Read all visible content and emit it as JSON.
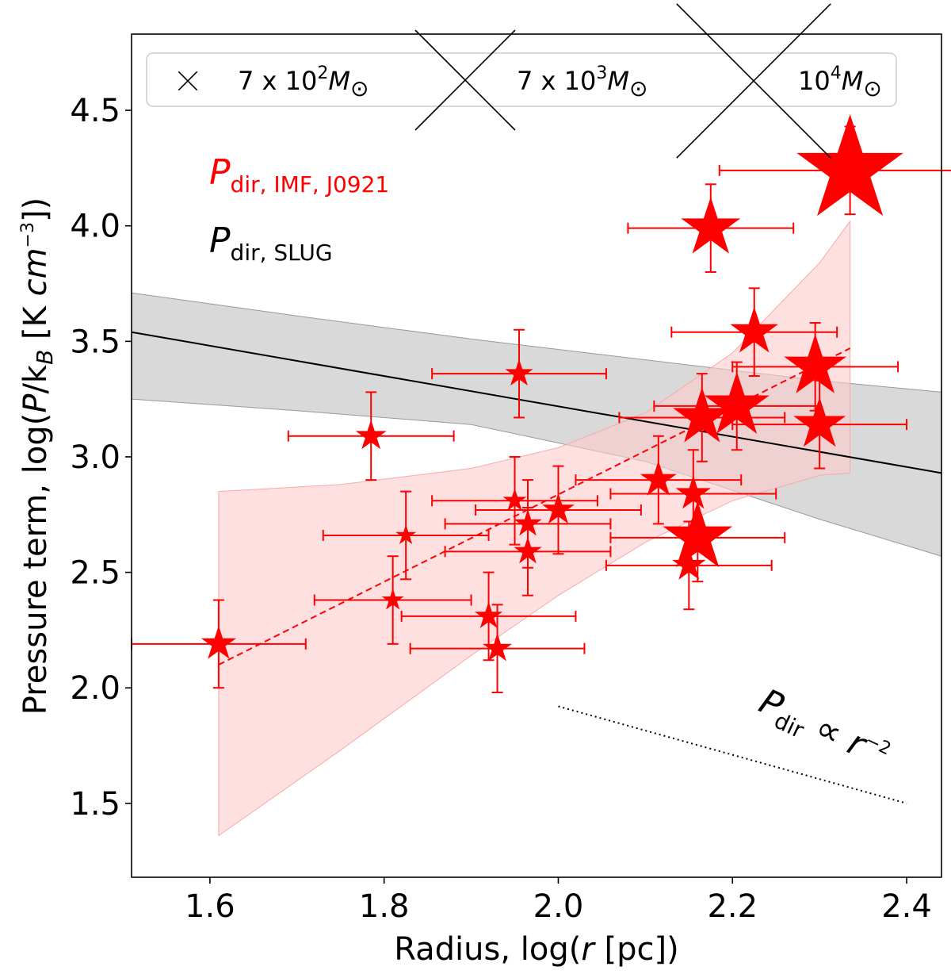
{
  "chart_data": {
    "type": "scatter",
    "xlabel_prefix": "Radius, log(",
    "xlabel_var": "r",
    "xlabel_suffix": " [pc])",
    "ylabel_prefix": "Pressure term, log(",
    "ylabel_var": "P",
    "ylabel_mid": "/k",
    "ylabel_sub": "B",
    "ylabel_unit": " [K ",
    "ylabel_cm": "cm",
    "ylabel_exp": "−3",
    "ylabel_close": "])",
    "xlim": [
      1.51,
      2.44
    ],
    "ylim": [
      1.18,
      4.83
    ],
    "xticks": [
      1.6,
      1.8,
      2.0,
      2.2,
      2.4
    ],
    "xtick_labels": [
      "1.6",
      "1.8",
      "2.0",
      "2.2",
      "2.4"
    ],
    "yticks": [
      1.5,
      2.0,
      2.5,
      3.0,
      3.5,
      4.0,
      4.5
    ],
    "ytick_labels": [
      "1.5",
      "2.0",
      "2.5",
      "3.0",
      "3.5",
      "4.0",
      "4.5"
    ],
    "series": [
      {
        "name": "P_dir,IMF,J0921",
        "color": "#ff0000",
        "marker": "star",
        "points": [
          {
            "x": 1.61,
            "y": 2.19,
            "xerr": 0.1,
            "yerr": 0.19,
            "size": 0.7
          },
          {
            "x": 1.785,
            "y": 3.09,
            "xerr": 0.095,
            "yerr": 0.19,
            "size": 0.55
          },
          {
            "x": 1.955,
            "y": 3.36,
            "xerr": 0.1,
            "yerr": 0.19,
            "size": 0.45
          },
          {
            "x": 1.825,
            "y": 2.66,
            "xerr": 0.095,
            "yerr": 0.19,
            "size": 0.2
          },
          {
            "x": 1.81,
            "y": 2.38,
            "xerr": 0.09,
            "yerr": 0.19,
            "size": 0.25
          },
          {
            "x": 1.92,
            "y": 2.31,
            "xerr": 0.1,
            "yerr": 0.19,
            "size": 0.45
          },
          {
            "x": 1.93,
            "y": 2.17,
            "xerr": 0.1,
            "yerr": 0.19,
            "size": 0.5
          },
          {
            "x": 1.95,
            "y": 2.81,
            "xerr": 0.095,
            "yerr": 0.19,
            "size": 0.3
          },
          {
            "x": 1.965,
            "y": 2.71,
            "xerr": 0.095,
            "yerr": 0.19,
            "size": 0.45
          },
          {
            "x": 1.965,
            "y": 2.59,
            "xerr": 0.095,
            "yerr": 0.19,
            "size": 0.45
          },
          {
            "x": 2.0,
            "y": 2.77,
            "xerr": 0.095,
            "yerr": 0.19,
            "size": 0.6
          },
          {
            "x": 2.115,
            "y": 2.9,
            "xerr": 0.095,
            "yerr": 0.19,
            "size": 0.75
          },
          {
            "x": 2.155,
            "y": 2.84,
            "xerr": 0.095,
            "yerr": 0.19,
            "size": 0.7
          },
          {
            "x": 2.15,
            "y": 2.53,
            "xerr": 0.095,
            "yerr": 0.19,
            "size": 0.65
          },
          {
            "x": 2.16,
            "y": 2.65,
            "xerr": 0.1,
            "yerr": 0.19,
            "size": 1.9
          },
          {
            "x": 2.165,
            "y": 3.17,
            "xerr": 0.095,
            "yerr": 0.19,
            "size": 1.5
          },
          {
            "x": 2.205,
            "y": 3.22,
            "xerr": 0.095,
            "yerr": 0.19,
            "size": 1.75
          },
          {
            "x": 2.225,
            "y": 3.54,
            "xerr": 0.095,
            "yerr": 0.19,
            "size": 1.15
          },
          {
            "x": 2.295,
            "y": 3.39,
            "xerr": 0.095,
            "yerr": 0.19,
            "size": 1.65
          },
          {
            "x": 2.3,
            "y": 3.14,
            "xerr": 0.1,
            "yerr": 0.19,
            "size": 1.3
          },
          {
            "x": 2.175,
            "y": 3.99,
            "xerr": 0.095,
            "yerr": 0.19,
            "size": 1.55
          },
          {
            "x": 2.335,
            "y": 4.24,
            "xerr": 0.15,
            "yerr": 0.19,
            "size": 3.2
          }
        ]
      }
    ],
    "fit_red": {
      "x": [
        1.61,
        2.335
      ],
      "y": [
        2.1,
        3.47
      ],
      "style": "dashed"
    },
    "band_red": {
      "x": [
        1.61,
        1.75,
        1.9,
        2.0,
        2.1,
        2.2,
        2.3,
        2.335
      ],
      "upper": [
        2.85,
        2.88,
        2.95,
        3.04,
        3.19,
        3.45,
        3.84,
        4.02
      ],
      "lower": [
        1.36,
        1.73,
        2.14,
        2.4,
        2.63,
        2.81,
        2.92,
        2.93
      ]
    },
    "fit_slug": {
      "x": [
        1.51,
        2.44
      ],
      "y": [
        3.54,
        2.93
      ],
      "style": "solid"
    },
    "band_slug": {
      "x": [
        1.51,
        1.7,
        1.9,
        2.1,
        2.3,
        2.44
      ],
      "upper": [
        3.71,
        3.61,
        3.51,
        3.42,
        3.33,
        3.28
      ],
      "lower": [
        3.25,
        3.2,
        3.14,
        2.98,
        2.73,
        2.57
      ]
    },
    "guide_r2": {
      "x": [
        2.0,
        2.4
      ],
      "y": [
        1.92,
        1.5
      ],
      "style": "dotted"
    },
    "guide_label": "P",
    "guide_label_sub": "dir",
    "guide_label_rest": " ∝ r",
    "guide_label_exp": "−2",
    "legend": {
      "placement": "top",
      "items": [
        {
          "mass_coef": "7 x 10",
          "mass_exp": "2",
          "unit": "M",
          "unit_sub": "⊙",
          "marker_size": 0.3
        },
        {
          "mass_coef": "7 x 10",
          "mass_exp": "3",
          "unit": "M",
          "unit_sub": "⊙",
          "marker_size": 3.0
        },
        {
          "mass_coef": "10",
          "mass_exp": "4",
          "unit": "M",
          "unit_sub": "⊙",
          "marker_size": 4.8
        }
      ]
    },
    "annotations": {
      "red_label": "P",
      "red_label_sub": "dir, IMF, J0921",
      "black_label": "P",
      "black_label_sub": "dir, SLUG"
    },
    "colors": {
      "red": "#ff0000",
      "red_band": "#ffcccc",
      "gray_band": "#bfbfbf",
      "black": "#000000"
    }
  }
}
